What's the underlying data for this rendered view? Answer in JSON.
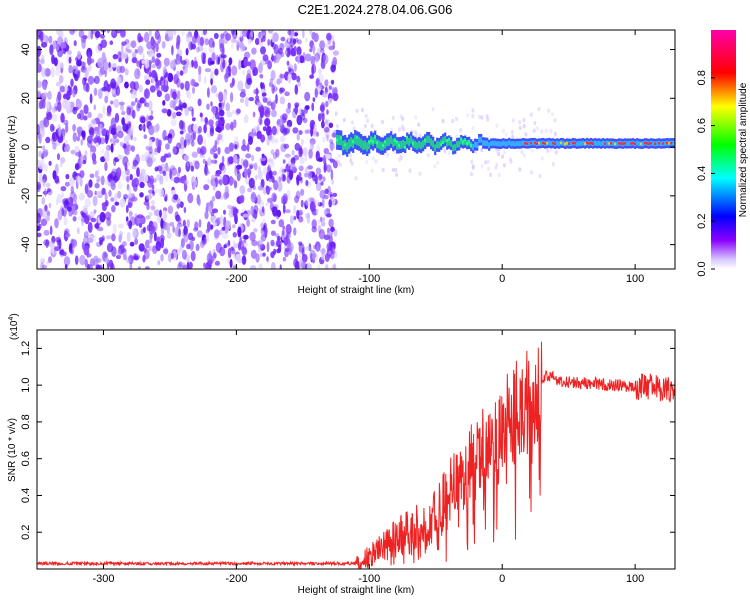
{
  "figure": {
    "title": "C2E1.2024.278.04.06.G06"
  },
  "chart_data": [
    {
      "type": "heatmap",
      "xlabel": "Height of straight line (km)",
      "ylabel": "Frequency (Hz)",
      "xlim": [
        -350,
        130
      ],
      "ylim": [
        -50,
        48
      ],
      "xticks": [
        "-300",
        "-200",
        "-100",
        "0",
        "100"
      ],
      "yticks": [
        "-40",
        "-20",
        "0",
        "20",
        "40"
      ],
      "noise_region_x": [
        -350,
        -125
      ],
      "signal_region_x": [
        -125,
        130
      ],
      "signal_frequency_hz": 1.5,
      "colorbar": {
        "label": "Normalized spectral amplitude",
        "range": [
          0,
          1
        ],
        "ticks": [
          "0.0",
          "0.2",
          "0.4",
          "0.6",
          "0.8"
        ],
        "colormap": [
          "#ffffff",
          "#8a00ff",
          "#0000ff",
          "#00ffff",
          "#00ff00",
          "#ffff00",
          "#ff0000",
          "#ff00aa"
        ]
      },
      "colors": {
        "noise": "#7a2dff",
        "band_edge": "#2a3cff",
        "band_mid": "#22e07a",
        "ridge": "#ff2a2a"
      }
    },
    {
      "type": "line",
      "xlabel": "Height of straight line (km)",
      "ylabel": "SNR (10 * v/v)",
      "scale_label": "(x10",
      "scale_exp": "4",
      "scale_close": ")",
      "xlim": [
        -350,
        130
      ],
      "ylim": [
        0,
        1.3
      ],
      "xticks": [
        "-300",
        "-200",
        "-100",
        "0",
        "100"
      ],
      "yticks": [
        "0.2",
        "0.4",
        "0.6",
        "0.8",
        "1.0",
        "1.2"
      ],
      "color": "#ee2222",
      "series": [
        {
          "x": [
            -350,
            -300,
            -250,
            -200,
            -150,
            -110,
            -100,
            -90,
            -80,
            -70,
            -60,
            -50,
            -40,
            -30,
            -20,
            -10,
            0,
            10,
            20,
            30,
            35,
            40,
            50,
            60,
            70,
            80,
            90,
            100,
            110,
            120,
            130
          ],
          "y": [
            0.03,
            0.03,
            0.03,
            0.03,
            0.03,
            0.03,
            0.06,
            0.12,
            0.16,
            0.2,
            0.24,
            0.3,
            0.4,
            0.52,
            0.6,
            0.68,
            0.78,
            0.85,
            0.92,
            1.02,
            1.06,
            1.03,
            1.02,
            1.01,
            1.01,
            1.0,
            1.0,
            0.99,
            0.99,
            0.98,
            0.97
          ]
        }
      ]
    }
  ]
}
